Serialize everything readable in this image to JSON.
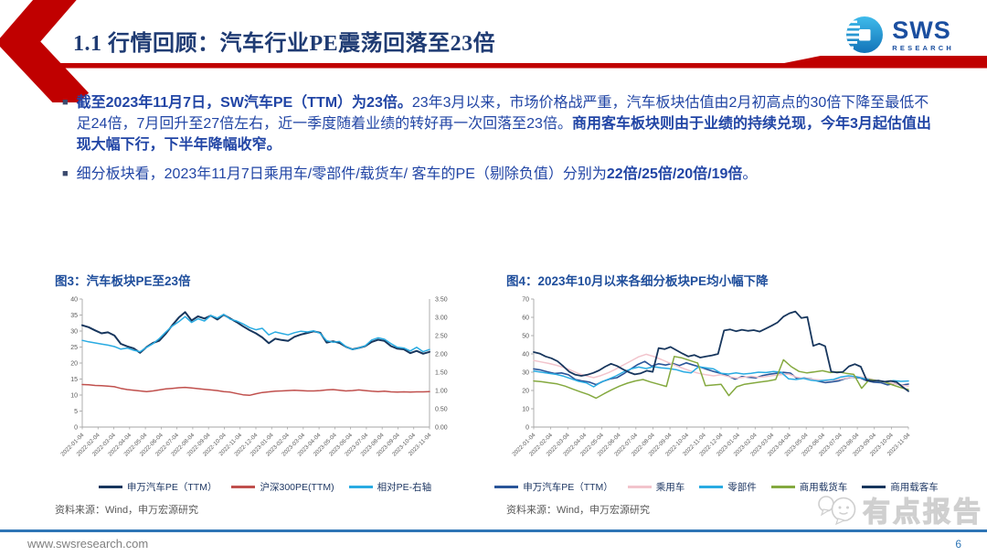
{
  "header": {
    "title": "1.1 行情回顾：汽车行业PE震荡回落至23倍",
    "logo_text": "SWS",
    "logo_subtext": "RESEARCH"
  },
  "bullets": {
    "b1_bold1": "截至2023年11月7日，SW汽车PE（TTM）为23倍。",
    "b1_reg": "23年3月以来，市场价格战严重，汽车板块估值由2月初高点的30倍下降至最低不足24倍，7月回升至27倍左右，近一季度随着业绩的转好再一次回落至23倍。",
    "b1_bold2": "商用客车板块则由于业绩的持续兑现，今年3月起估值出现大幅下行，下半年降幅收窄。",
    "b2_reg1": "细分板块看，2023年11月7日乘用车/零部件/载货车/ 客车的PE（剔除负值）分别为",
    "b2_bold": "22倍/25倍/20倍/19倍",
    "b2_reg2": "。"
  },
  "chart_data": [
    {
      "type": "line",
      "title": "图3：汽车板块PE至23倍",
      "source": "资料来源：Wind，申万宏源研究",
      "x_labels": [
        "2022-01-04",
        "2022-02-04",
        "2022-03-04",
        "2022-04-04",
        "2022-05-04",
        "2022-06-04",
        "2022-07-04",
        "2022-08-04",
        "2022-09-04",
        "2022-10-04",
        "2022-11-04",
        "2022-12-04",
        "2023-01-04",
        "2023-02-04",
        "2023-03-04",
        "2023-04-04",
        "2023-05-04",
        "2023-06-04",
        "2023-07-04",
        "2023-08-04",
        "2023-09-04",
        "2023-10-04",
        "2023-11-04"
      ],
      "ylim": [
        0,
        40
      ],
      "yticks": [
        0,
        5,
        10,
        15,
        20,
        25,
        30,
        35,
        40
      ],
      "y2lim": [
        0,
        3.5
      ],
      "y2ticks": [
        "0.00",
        "0.50",
        "1.00",
        "1.50",
        "2.00",
        "2.50",
        "3.00",
        "3.50"
      ],
      "grid": false,
      "legend_position": "bottom",
      "series": [
        {
          "name": "申万汽车PE（TTM）",
          "color": "#17365D",
          "axis": "left",
          "values": [
            31.8,
            31.2,
            30.2,
            29.3,
            29.6,
            28.6,
            26.0,
            25.2,
            24.6,
            23.2,
            25.0,
            26.3,
            27.0,
            29.2,
            31.8,
            34.2,
            35.9,
            33.3,
            34.6,
            33.9,
            34.8,
            33.6,
            35.1,
            33.9,
            32.8,
            31.5,
            30.3,
            29.3,
            28.0,
            26.2,
            27.6,
            27.2,
            26.9,
            28.2,
            28.9,
            29.4,
            29.9,
            29.5,
            26.4,
            26.8,
            26.3,
            25.1,
            24.3,
            24.7,
            25.3,
            26.6,
            27.3,
            26.9,
            25.3,
            24.5,
            24.3,
            23.1,
            23.8,
            22.9,
            23.5
          ]
        },
        {
          "name": "沪深300PE(TTM)",
          "color": "#C0504D",
          "axis": "left",
          "values": [
            13.3,
            13.2,
            13.0,
            12.9,
            12.8,
            12.6,
            12.1,
            11.7,
            11.5,
            11.3,
            11.1,
            11.3,
            11.6,
            11.9,
            12.1,
            12.3,
            12.4,
            12.2,
            12.0,
            11.8,
            11.6,
            11.4,
            11.1,
            10.9,
            10.5,
            10.1,
            9.9,
            10.4,
            10.8,
            11.0,
            11.2,
            11.3,
            11.4,
            11.5,
            11.4,
            11.3,
            11.3,
            11.4,
            11.6,
            11.7,
            11.5,
            11.3,
            11.4,
            11.6,
            11.4,
            11.2,
            11.1,
            11.2,
            11.0,
            10.9,
            11.0,
            10.9,
            11.0,
            11.0,
            11.1
          ]
        },
        {
          "name": "相对PE-右轴",
          "color": "#29ABE2",
          "axis": "right",
          "values": [
            2.37,
            2.33,
            2.3,
            2.27,
            2.24,
            2.2,
            2.13,
            2.16,
            2.1,
            2.06,
            2.18,
            2.28,
            2.42,
            2.6,
            2.76,
            2.88,
            3.02,
            2.86,
            2.96,
            2.9,
            3.05,
            2.98,
            3.08,
            2.95,
            2.9,
            2.82,
            2.72,
            2.66,
            2.7,
            2.52,
            2.6,
            2.56,
            2.52,
            2.58,
            2.62,
            2.6,
            2.63,
            2.56,
            2.36,
            2.32,
            2.34,
            2.2,
            2.12,
            2.16,
            2.22,
            2.38,
            2.44,
            2.4,
            2.28,
            2.18,
            2.16,
            2.08,
            2.18,
            2.06,
            2.12
          ]
        }
      ]
    },
    {
      "type": "line",
      "title": "图4：2023年10月以来各细分板块PE均小幅下降",
      "source": "资料来源：Wind，申万宏源研究",
      "x_labels": [
        "2022-01-04",
        "2022-02-04",
        "2022-03-04",
        "2022-04-04",
        "2022-05-04",
        "2022-06-04",
        "2022-07-04",
        "2022-08-04",
        "2022-09-04",
        "2022-10-04",
        "2022-11-04",
        "2022-12-04",
        "2023-01-04",
        "2023-02-04",
        "2023-03-04",
        "2023-04-04",
        "2023-05-04",
        "2023-06-04",
        "2023-07-04",
        "2023-08-04",
        "2023-09-04",
        "2023-10-04",
        "2023-11-04"
      ],
      "ylim": [
        0,
        70
      ],
      "yticks": [
        0,
        10,
        20,
        30,
        40,
        50,
        60,
        70
      ],
      "grid": false,
      "legend_position": "bottom",
      "series": [
        {
          "name": "申万汽车PE（TTM）",
          "color": "#2A5599",
          "axis": "left",
          "values": [
            31.8,
            31.2,
            30.2,
            29.3,
            29.6,
            28.6,
            26.0,
            25.2,
            24.6,
            23.2,
            25.0,
            26.3,
            27.0,
            29.2,
            31.8,
            34.2,
            35.9,
            33.3,
            34.6,
            33.9,
            34.8,
            33.6,
            35.1,
            33.9,
            32.8,
            31.5,
            30.3,
            29.3,
            28.0,
            26.2,
            27.6,
            27.2,
            26.9,
            28.2,
            28.9,
            29.4,
            29.9,
            29.5,
            26.4,
            26.8,
            26.3,
            25.1,
            24.3,
            24.7,
            25.3,
            26.6,
            27.3,
            26.9,
            25.3,
            24.5,
            24.3,
            23.1,
            23.8,
            22.9,
            23.5
          ]
        },
        {
          "name": "乘用车",
          "color": "#F2C4CC",
          "axis": "left",
          "values": [
            36.4,
            35.6,
            34.8,
            33.8,
            32.6,
            31.0,
            29.2,
            28.0,
            27.0,
            28.2,
            29.8,
            31.8,
            34.0,
            36.2,
            38.4,
            39.8,
            38.6,
            37.0,
            35.2,
            33.6,
            32.0,
            30.6,
            29.4,
            28.6,
            28.0,
            28.6,
            27.6,
            26.8,
            27.2,
            27.8,
            27.2,
            27.6,
            28.2,
            28.6,
            29.0,
            27.4,
            26.6,
            26.2,
            25.8,
            25.4,
            25.8,
            26.2,
            27.0,
            27.6,
            27.2,
            26.2,
            25.2,
            24.6,
            23.8,
            23.0,
            22.4
          ]
        },
        {
          "name": "零部件",
          "color": "#29ABE2",
          "axis": "left",
          "values": [
            30.6,
            30.0,
            29.4,
            28.8,
            27.8,
            26.4,
            25.0,
            24.2,
            22.0,
            24.6,
            26.2,
            28.0,
            30.2,
            31.8,
            32.8,
            32.0,
            33.0,
            32.4,
            32.0,
            31.4,
            30.2,
            29.6,
            33.0,
            32.4,
            31.8,
            29.4,
            29.0,
            29.6,
            29.0,
            29.4,
            30.0,
            29.8,
            30.4,
            30.0,
            26.4,
            26.0,
            26.6,
            25.6,
            25.2,
            25.6,
            26.0,
            27.4,
            28.0,
            27.6,
            26.6,
            25.8,
            25.2,
            24.8,
            25.4,
            25.0,
            25.2
          ]
        },
        {
          "name": "商用载货车",
          "color": "#84A93F",
          "axis": "left",
          "values": [
            25.2,
            24.8,
            24.2,
            23.6,
            22.4,
            20.8,
            19.2,
            17.8,
            15.8,
            18.2,
            20.4,
            22.4,
            24.0,
            25.2,
            26.0,
            24.6,
            23.4,
            22.2,
            38.6,
            37.8,
            36.4,
            35.0,
            22.6,
            23.0,
            23.4,
            17.2,
            22.0,
            23.4,
            24.0,
            24.6,
            25.2,
            26.0,
            36.8,
            33.0,
            30.4,
            29.6,
            30.2,
            30.8,
            29.8,
            30.2,
            29.4,
            28.8,
            21.2,
            26.0,
            25.4,
            24.6,
            23.0,
            21.6,
            20.5
          ]
        },
        {
          "name": "商用载客车",
          "color": "#17365D",
          "axis": "left",
          "values": [
            41.0,
            40.2,
            38.6,
            37.6,
            36.0,
            33.2,
            30.2,
            28.6,
            28.0,
            28.6,
            29.6,
            31.0,
            33.0,
            34.6,
            33.4,
            31.6,
            30.0,
            28.8,
            29.4,
            30.8,
            30.2,
            43.2,
            42.6,
            43.8,
            42.0,
            40.2,
            38.6,
            39.4,
            38.0,
            38.6,
            39.2,
            40.0,
            52.8,
            53.4,
            52.4,
            53.2,
            52.6,
            53.0,
            52.2,
            53.8,
            55.4,
            57.2,
            60.4,
            62.2,
            63.2,
            59.6,
            60.2,
            44.4,
            45.6,
            44.2,
            30.4,
            29.8,
            30.2,
            33.2,
            34.4,
            33.0,
            25.6,
            25.2,
            25.4,
            24.8,
            25.2,
            24.6,
            22.0,
            19.6
          ]
        }
      ]
    }
  ],
  "footer": {
    "url": "www.swsresearch.com",
    "page": "6",
    "watermark": "有点报告"
  },
  "colors": {
    "accent_red": "#C00000",
    "title_blue": "#1F3B73",
    "body_blue": "#2145A5",
    "chart_title_blue": "#1F4E9C",
    "footer_line_blue": "#2E75B6",
    "axis_gray": "#595959"
  }
}
